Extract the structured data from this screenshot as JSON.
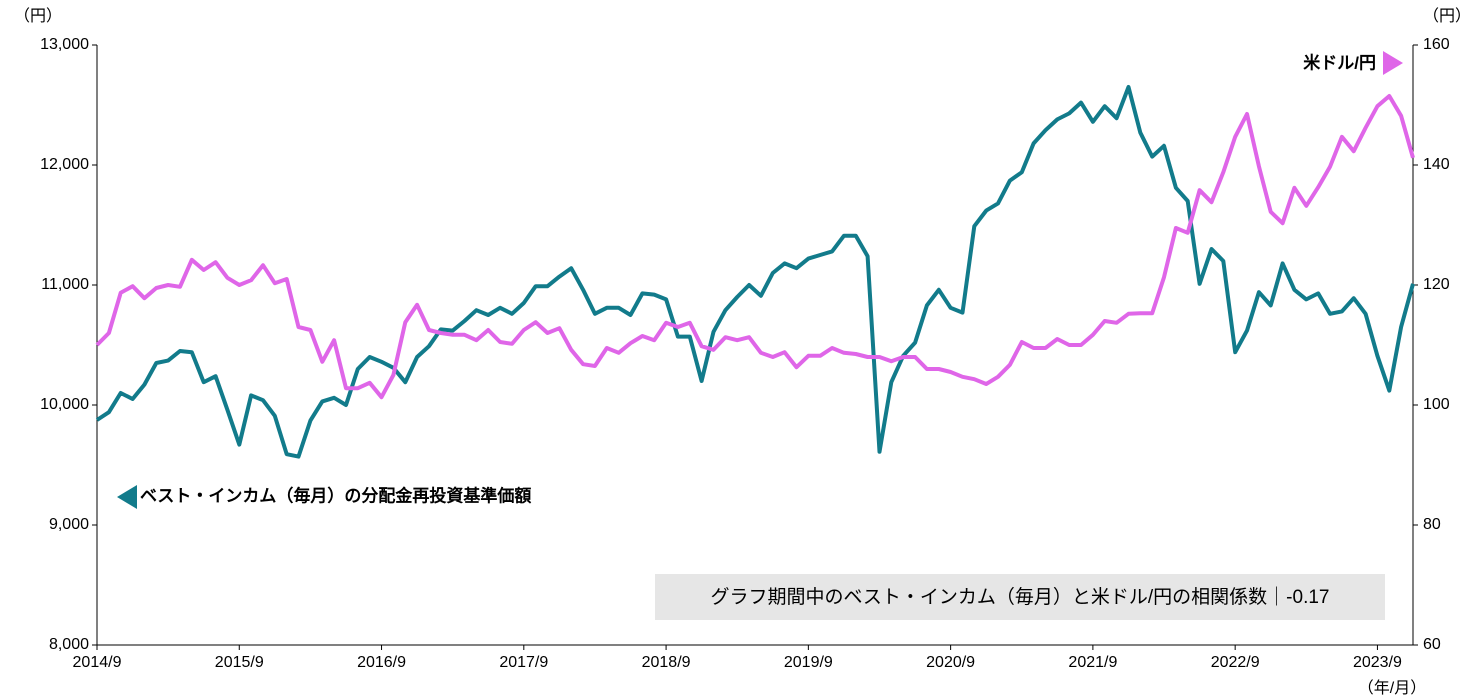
{
  "chart_data": {
    "type": "line",
    "y_label": "（円）",
    "y2_label": "（円）",
    "x_label": "（年/月）",
    "annotation": "グラフ期間中のベスト・インカム（毎月）と米ドル/円の相関係数｜-0.17",
    "categories": [
      "2014/9",
      null,
      null,
      null,
      null,
      null,
      null,
      null,
      null,
      null,
      null,
      null,
      "2015/9",
      null,
      null,
      null,
      null,
      null,
      null,
      null,
      null,
      null,
      null,
      null,
      "2016/9",
      null,
      null,
      null,
      null,
      null,
      null,
      null,
      null,
      null,
      null,
      null,
      "2017/9",
      null,
      null,
      null,
      null,
      null,
      null,
      null,
      null,
      null,
      null,
      null,
      "2018/9",
      null,
      null,
      null,
      null,
      null,
      null,
      null,
      null,
      null,
      null,
      null,
      "2019/9",
      null,
      null,
      null,
      null,
      null,
      null,
      null,
      null,
      null,
      null,
      null,
      "2020/9",
      null,
      null,
      null,
      null,
      null,
      null,
      null,
      null,
      null,
      null,
      null,
      "2021/9",
      null,
      null,
      null,
      null,
      null,
      null,
      null,
      null,
      null,
      null,
      null,
      "2022/9",
      null,
      null,
      null,
      null,
      null,
      null,
      null,
      null,
      null,
      null,
      null,
      "2023/9",
      null,
      null,
      null
    ],
    "series": [
      {
        "name": "ベスト・インカム（毎月）の分配金再投資基準価額",
        "color": "#127b8b",
        "axis": "y",
        "legend": "left",
        "values": [
          9875,
          9940,
          10100,
          10050,
          10170,
          10350,
          10370,
          10450,
          10440,
          10190,
          10240,
          9960,
          9670,
          10080,
          10040,
          9910,
          9590,
          9570,
          9870,
          10030,
          10060,
          10000,
          10300,
          10400,
          10360,
          10310,
          10190,
          10400,
          10490,
          10630,
          10620,
          10700,
          10790,
          10750,
          10810,
          10760,
          10850,
          10990,
          10990,
          11070,
          11140,
          10960,
          10760,
          10810,
          10810,
          10750,
          10930,
          10920,
          10880,
          10570,
          10570,
          10200,
          10610,
          10790,
          10900,
          11000,
          10910,
          11100,
          11180,
          11140,
          11220,
          11250,
          11280,
          11410,
          11410,
          11240,
          9610,
          10190,
          10410,
          10520,
          10830,
          10960,
          10810,
          10770,
          11490,
          11620,
          11680,
          11870,
          11940,
          12180,
          12290,
          12380,
          12430,
          12520,
          12360,
          12490,
          12390,
          12650,
          12270,
          12070,
          12160,
          11810,
          11700,
          11010,
          11300,
          11200,
          10440,
          10620,
          10940,
          10830,
          11180,
          10960,
          10880,
          10930,
          10760,
          10780,
          10890,
          10760,
          10410,
          10120,
          10650,
          11010
        ]
      },
      {
        "name": "米ドル/円",
        "color": "#df66e8",
        "axis": "y2",
        "legend": "right",
        "values": [
          110,
          112,
          118.7,
          119.8,
          117.8,
          119.5,
          120,
          119.7,
          124.2,
          122.5,
          123.8,
          121.2,
          120,
          120.8,
          123.3,
          120.3,
          121,
          113,
          112.5,
          107.2,
          110.8,
          102.8,
          102.8,
          103.7,
          101.3,
          105,
          113.8,
          116.7,
          112.5,
          112,
          111.7,
          111.7,
          110.8,
          112.5,
          110.5,
          110.2,
          112.5,
          113.8,
          112,
          112.8,
          109.2,
          106.8,
          106.5,
          109.5,
          108.7,
          110.3,
          111.5,
          110.8,
          113.7,
          113,
          113.7,
          109.8,
          109.2,
          111.3,
          110.8,
          111.3,
          108.7,
          108,
          108.8,
          106.3,
          108.2,
          108.2,
          109.5,
          108.7,
          108.5,
          108,
          108,
          107.3,
          108,
          108,
          106,
          106,
          105.5,
          104.7,
          104.3,
          103.5,
          104.7,
          106.7,
          110.5,
          109.5,
          109.5,
          111,
          110,
          110,
          111.7,
          114,
          113.7,
          115.2,
          115.3,
          115.3,
          121.3,
          129.5,
          128.7,
          135.8,
          133.8,
          138.8,
          144.7,
          148.5,
          139.8,
          132.2,
          130.3,
          136.2,
          133.2,
          136.3,
          139.7,
          144.7,
          142.3,
          146.2,
          149.8,
          151.5,
          148.2,
          141.2
        ]
      }
    ],
    "ylim": [
      8000,
      13000
    ],
    "yticks": [
      {
        "value": 8000,
        "label": "8,000"
      },
      {
        "value": 9000,
        "label": "9,000"
      },
      {
        "value": 10000,
        "label": "10,000"
      },
      {
        "value": 11000,
        "label": "11,000"
      },
      {
        "value": 12000,
        "label": "12,000"
      },
      {
        "value": 13000,
        "label": "13,000"
      }
    ],
    "y2lim": [
      60,
      160
    ],
    "y2ticks": [
      60,
      80,
      100,
      120,
      140,
      160
    ],
    "grid": false
  }
}
